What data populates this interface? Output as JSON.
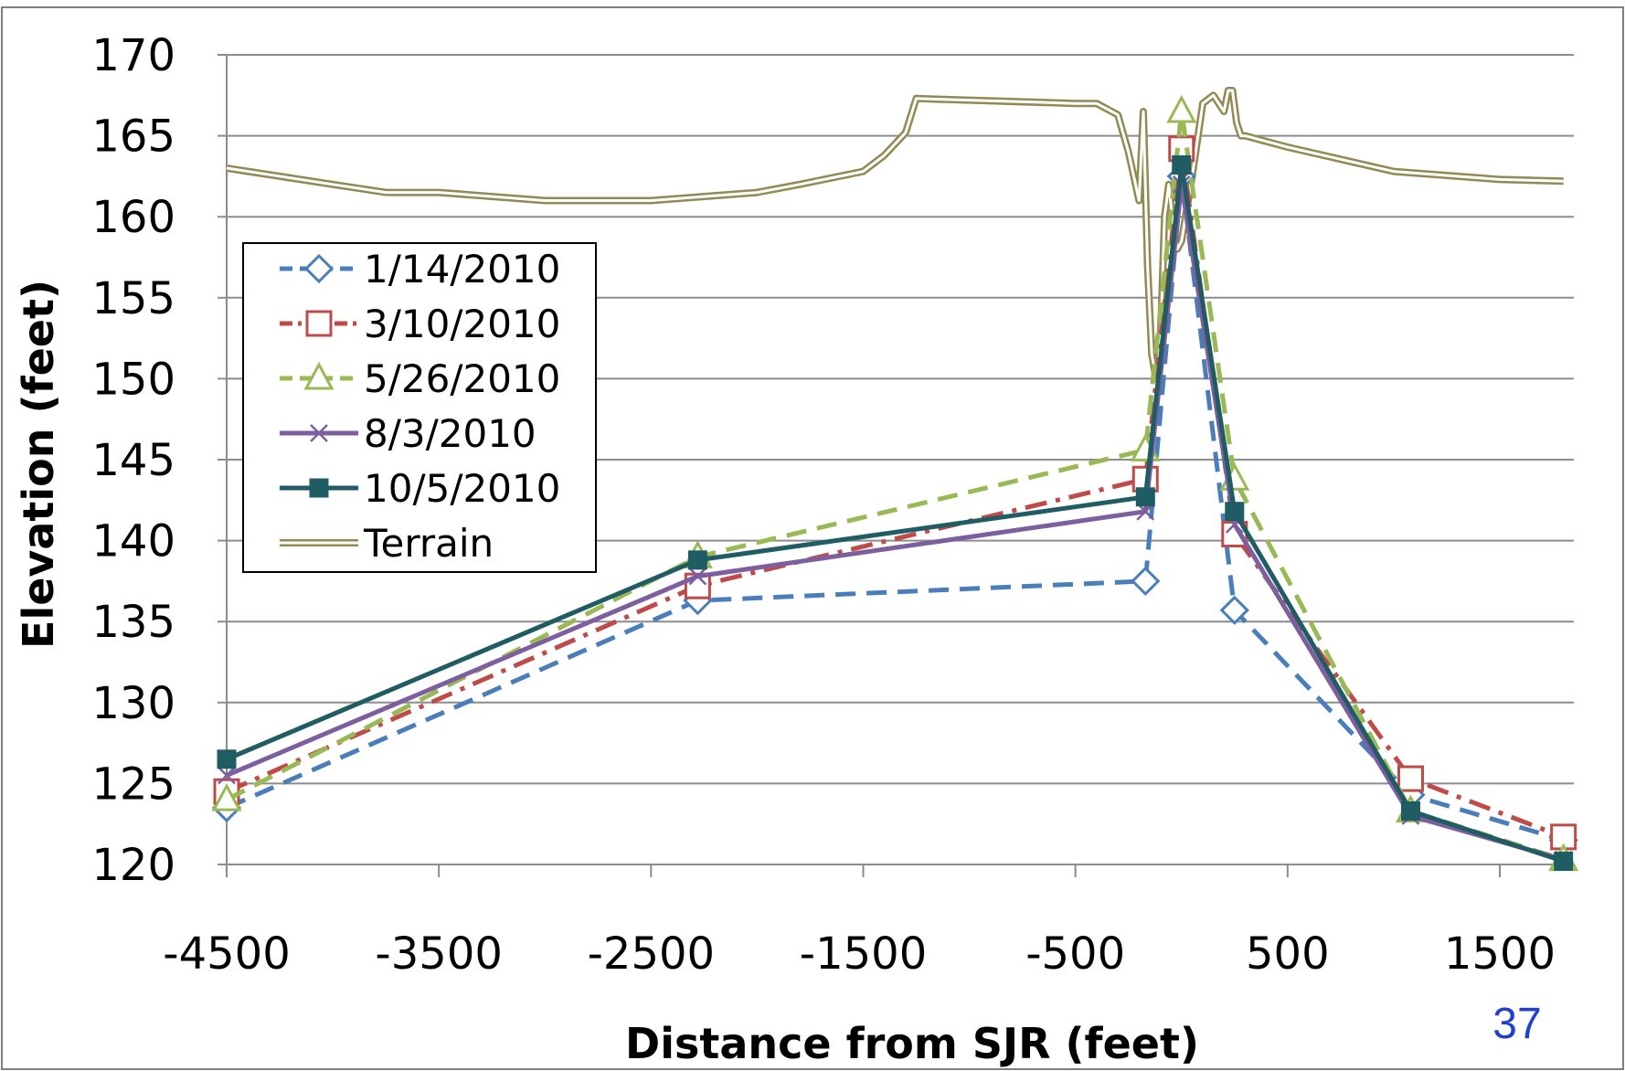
{
  "chart_data": {
    "type": "line",
    "title": "",
    "xlabel": "Distance from SJR (feet)",
    "ylabel": "Elevation (feet)",
    "xlim": [
      -4500,
      1800
    ],
    "ylim": [
      120,
      170
    ],
    "xticks": [
      -4500,
      -3500,
      -2500,
      -1500,
      -500,
      500,
      1500
    ],
    "yticks": [
      120,
      125,
      130,
      135,
      140,
      145,
      150,
      155,
      160,
      165,
      170
    ],
    "xtick_labels": [
      "-4500",
      "-3500",
      "-2500",
      "-1500",
      "-500",
      "500",
      "1500"
    ],
    "ytick_labels": [
      "120",
      "125",
      "130",
      "135",
      "140",
      "145",
      "150",
      "155",
      "160",
      "165",
      "170"
    ],
    "grid": "horizontal",
    "legend": "upper-left",
    "series": [
      {
        "name": "1/14/2010",
        "color": "#4a7ebb",
        "dash": "dashed",
        "marker": "diamond-open",
        "x": [
          -4500,
          -2280,
          -170,
          0,
          250,
          1080,
          1800
        ],
        "y": [
          123.5,
          136.3,
          137.5,
          162.5,
          135.7,
          124.3,
          121.5
        ]
      },
      {
        "name": "3/10/2010",
        "color": "#be4b48",
        "dash": "dashdot",
        "marker": "square-open",
        "x": [
          -4500,
          -2280,
          -170,
          0,
          250,
          1080,
          1800
        ],
        "y": [
          124.5,
          137.2,
          143.8,
          164.2,
          140.4,
          125.3,
          121.7
        ]
      },
      {
        "name": "5/26/2010",
        "color": "#98b954",
        "dash": "dashed",
        "marker": "triangle-open",
        "x": [
          -4500,
          -2280,
          -170,
          0,
          250,
          1080,
          1800
        ],
        "y": [
          124.0,
          139.0,
          145.6,
          166.5,
          143.8,
          123.3,
          120.3
        ]
      },
      {
        "name": "8/3/2010",
        "color": "#7d5fa0",
        "dash": "solid",
        "marker": "x",
        "x": [
          -4500,
          -2280,
          -170,
          0,
          250,
          1080,
          1800
        ],
        "y": [
          125.5,
          137.8,
          141.8,
          162.0,
          141.0,
          123.0,
          120.3
        ]
      },
      {
        "name": "10/5/2010",
        "color": "#1f5c63",
        "dash": "solid",
        "marker": "square-filled",
        "x": [
          -4500,
          -2280,
          -170,
          0,
          250,
          1080,
          1800
        ],
        "y": [
          126.5,
          138.8,
          142.7,
          163.2,
          141.8,
          123.3,
          120.2
        ]
      },
      {
        "name": "Terrain",
        "color": "#938953",
        "dash": "double",
        "marker": "none",
        "x": [
          -4500,
          -4000,
          -3750,
          -3500,
          -3000,
          -2500,
          -2000,
          -1800,
          -1500,
          -1400,
          -1300,
          -1250,
          -1000,
          -500,
          -400,
          -300,
          -250,
          -200,
          -180,
          -160,
          -140,
          -120,
          -100,
          -80,
          -60,
          -40,
          -20,
          0,
          50,
          100,
          150,
          200,
          220,
          240,
          260,
          280,
          300,
          500,
          1000,
          1500,
          1800
        ],
        "y": [
          163.0,
          162.0,
          161.5,
          161.5,
          161.0,
          161.0,
          161.5,
          162.0,
          162.8,
          163.8,
          165.2,
          167.3,
          167.2,
          167.0,
          167.0,
          166.3,
          164.0,
          161.0,
          166.5,
          157.0,
          151.5,
          150.0,
          152.0,
          160.0,
          162.0,
          159.5,
          158.0,
          158.5,
          162.5,
          167.0,
          167.5,
          166.5,
          167.8,
          167.8,
          165.8,
          165.0,
          165.0,
          164.3,
          162.8,
          162.3,
          162.2
        ]
      }
    ]
  },
  "page": {
    "number": "37"
  }
}
